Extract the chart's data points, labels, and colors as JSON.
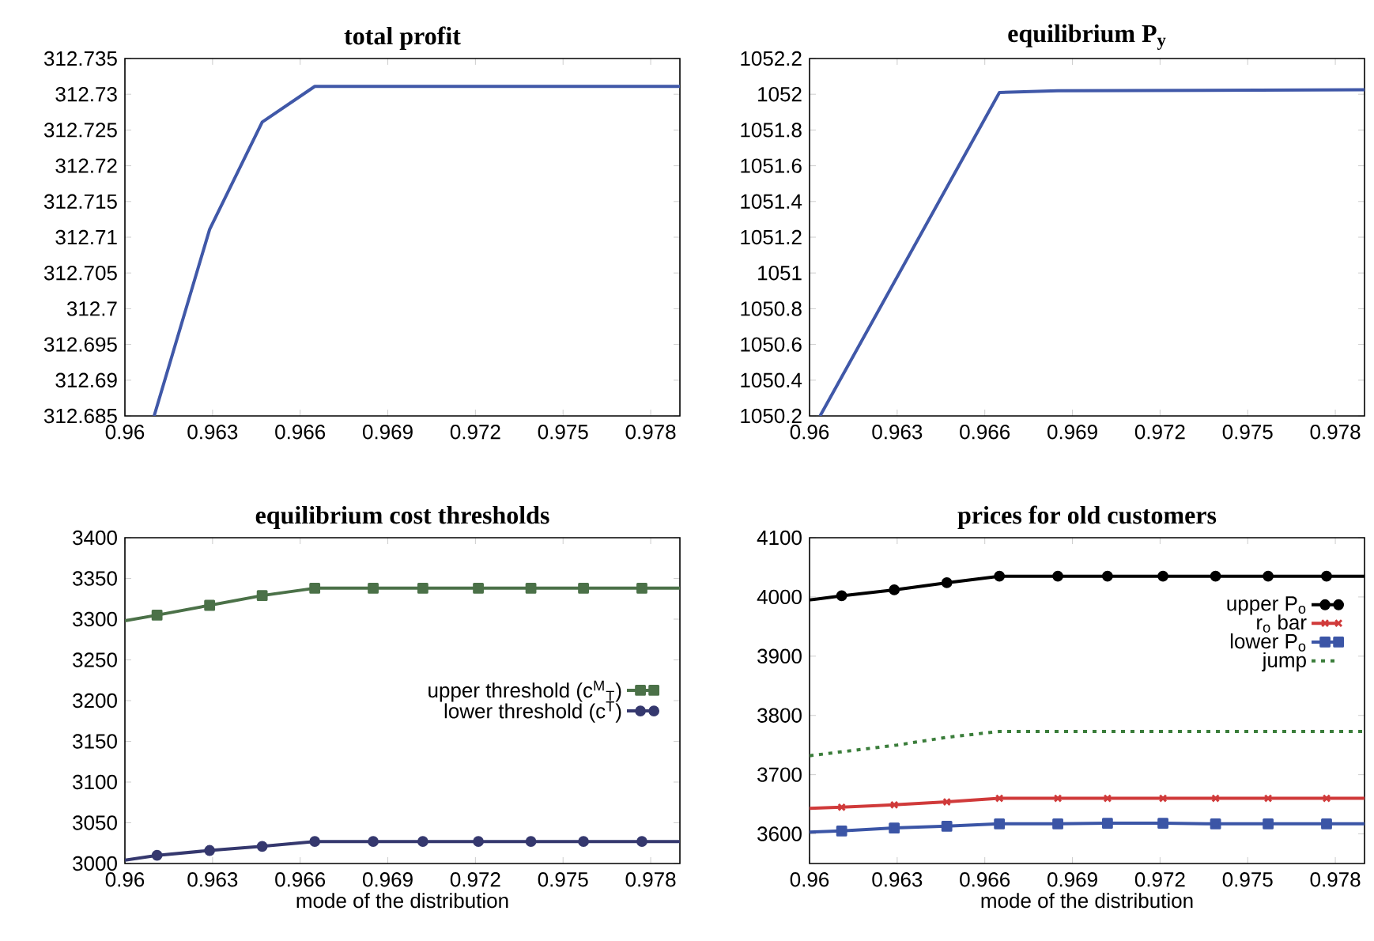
{
  "chart_data": [
    {
      "type": "line",
      "title": "total profit",
      "xlim": [
        0.96,
        0.979
      ],
      "xticks": [
        0.96,
        0.963,
        0.966,
        0.969,
        0.972,
        0.975,
        0.978
      ],
      "ylim": [
        312.685,
        312.735
      ],
      "yticks": [
        312.685,
        312.69,
        312.695,
        312.7,
        312.705,
        312.71,
        312.715,
        312.72,
        312.725,
        312.73,
        312.735
      ],
      "series": [
        {
          "color": "#4058a8",
          "x": [
            0.961,
            0.9629,
            0.9647,
            0.9665,
            0.979
          ],
          "values": [
            312.685,
            312.7111,
            312.7261,
            312.7311,
            312.7311
          ]
        }
      ]
    },
    {
      "type": "line",
      "title": "equilibrium P$_{y}$",
      "xlim": [
        0.96,
        0.979
      ],
      "xticks": [
        0.96,
        0.963,
        0.966,
        0.969,
        0.972,
        0.975,
        0.978
      ],
      "ylim": [
        1050.2,
        1052.2
      ],
      "yticks": [
        1050.2,
        1050.4,
        1050.6,
        1050.8,
        1051,
        1051.2,
        1051.4,
        1051.6,
        1051.8,
        1052,
        1052.2
      ],
      "series": [
        {
          "color": "#4058a8",
          "x": [
            0.96036,
            0.9665,
            0.9685,
            0.979
          ],
          "values": [
            1050.2,
            1052.01,
            1052.02,
            1052.025
          ]
        }
      ]
    },
    {
      "type": "line",
      "title": "equilibrium cost thresholds",
      "xlabel": "mode of the distribution",
      "xlim": [
        0.96,
        0.979
      ],
      "xticks": [
        0.96,
        0.963,
        0.966,
        0.969,
        0.972,
        0.975,
        0.978
      ],
      "ylim": [
        3000,
        3400
      ],
      "yticks": [
        3000,
        3050,
        3100,
        3150,
        3200,
        3250,
        3300,
        3350,
        3400
      ],
      "legend": "right",
      "series": [
        {
          "name": "upper threshold (c$^{M}$$_{T}$)",
          "color": "#4b7148",
          "marker": "square",
          "x": [
            0.96,
            0.9611,
            0.9629,
            0.9647,
            0.9665,
            0.9685,
            0.9702,
            0.9721,
            0.9739,
            0.9757,
            0.9777,
            0.979
          ],
          "values": [
            3298,
            3305,
            3317,
            3329,
            3338,
            3338,
            3338,
            3338,
            3338,
            3338,
            3338,
            3338
          ]
        },
        {
          "name": "lower threshold (c$^{T}$)",
          "color": "#35386e",
          "marker": "circle",
          "x": [
            0.96,
            0.9611,
            0.9629,
            0.9647,
            0.9665,
            0.9685,
            0.9702,
            0.9721,
            0.9739,
            0.9757,
            0.9777,
            0.979
          ],
          "values": [
            3004,
            3010,
            3016,
            3021,
            3027,
            3027,
            3027,
            3027,
            3027,
            3027,
            3027,
            3027
          ]
        }
      ]
    },
    {
      "type": "line",
      "title": "prices for old customers",
      "xlabel": "mode of the distribution",
      "xlim": [
        0.96,
        0.979
      ],
      "xticks": [
        0.96,
        0.963,
        0.966,
        0.969,
        0.972,
        0.975,
        0.978
      ],
      "ylim": [
        3550,
        4100
      ],
      "yticks": [
        3600,
        3700,
        3800,
        3900,
        4000,
        4100
      ],
      "legend": "top right",
      "series": [
        {
          "name": "upper P$_{o}$",
          "color": "#000000",
          "marker": "circle",
          "x": [
            0.96,
            0.9611,
            0.9629,
            0.9647,
            0.9665,
            0.9685,
            0.9702,
            0.9721,
            0.9739,
            0.9757,
            0.9777,
            0.979
          ],
          "values": [
            3995,
            4002,
            4012,
            4024,
            4035,
            4035,
            4035,
            4035,
            4035,
            4035,
            4035,
            4035
          ]
        },
        {
          "name": "r$_{o}$ bar",
          "color": "#d03a3a",
          "marker": "cross",
          "x": [
            0.96,
            0.9611,
            0.9629,
            0.9647,
            0.9665,
            0.9685,
            0.9702,
            0.9721,
            0.9739,
            0.9757,
            0.9777,
            0.979
          ],
          "values": [
            3643,
            3645,
            3649,
            3654,
            3660,
            3660,
            3660,
            3660,
            3660,
            3660,
            3660,
            3660
          ]
        },
        {
          "name": "lower P$_{o}$",
          "color": "#3b55a6",
          "marker": "square",
          "x": [
            0.96,
            0.9611,
            0.9629,
            0.9647,
            0.9665,
            0.9685,
            0.9702,
            0.9721,
            0.9739,
            0.9757,
            0.9777,
            0.979
          ],
          "values": [
            3603,
            3605,
            3610,
            3613,
            3617,
            3617,
            3618,
            3618,
            3617,
            3617,
            3617,
            3617
          ]
        },
        {
          "name": "jump",
          "color": "#3a7d3a",
          "line_style": "dotted",
          "x": [
            0.96,
            0.963,
            0.9647,
            0.9665,
            0.979
          ],
          "values": [
            3732,
            3750,
            3763,
            3773,
            3773
          ]
        }
      ]
    }
  ]
}
